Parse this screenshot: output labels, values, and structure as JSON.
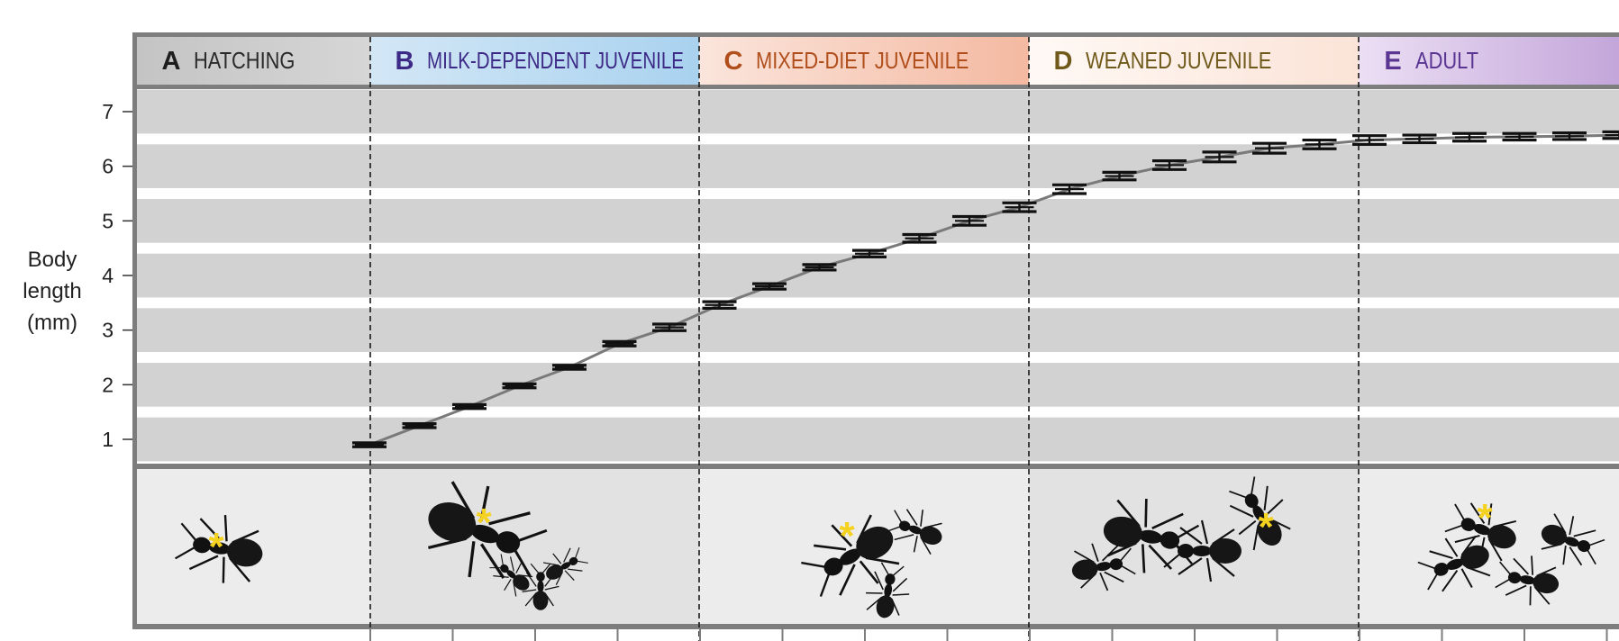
{
  "chart_data": {
    "type": "line",
    "title": "",
    "xlabel": "",
    "ylabel": "Body length (mm)",
    "ylabel_lines": [
      "Body",
      "length",
      "(mm)"
    ],
    "ylim": [
      0.4,
      7.45
    ],
    "yticks": [
      1,
      2,
      3,
      4,
      5,
      6,
      7
    ],
    "ytick_labels": [
      "1",
      "2",
      "3",
      "4",
      "5",
      "6",
      "7"
    ],
    "grid": "horizontal white bands on grey background",
    "legend": "none",
    "line_color": "#7a7a7a",
    "stages": [
      {
        "letter": "A",
        "name": "HATCHING",
        "letter_color": "#1e1e1e",
        "name_color": "#2a2a2a",
        "bg_from": "#c4c4c4",
        "bg_to": "#d6d6d6"
      },
      {
        "letter": "B",
        "name": "MILK-DEPENDENT JUVENILE",
        "letter_color": "#3d2a86",
        "name_color": "#3d2a86",
        "bg_from": "#d3e7f6",
        "bg_to": "#a9d2ef"
      },
      {
        "letter": "C",
        "name": "MIXED-DIET JUVENILE",
        "letter_color": "#b04e1c",
        "name_color": "#b04e1c",
        "bg_from": "#fbe5dc",
        "bg_to": "#f4b9a1"
      },
      {
        "letter": "D",
        "name": "WEANED JUVENILE",
        "letter_color": "#6f5a1b",
        "name_color": "#6f5a1b",
        "bg_from": "#fff9f5",
        "bg_to": "#fbe3d7"
      },
      {
        "letter": "E",
        "name": "ADULT",
        "letter_color": "#5a3592",
        "name_color": "#5a3592",
        "bg_from": "#ecdff4",
        "bg_to": "#c3a6da"
      }
    ],
    "series": [
      {
        "points": [
          {
            "x": 1,
            "y": 0.9,
            "err": 0.02
          },
          {
            "x": 2,
            "y": 1.25,
            "err": 0.03
          },
          {
            "x": 3,
            "y": 1.6,
            "err": 0.03
          },
          {
            "x": 4,
            "y": 1.98,
            "err": 0.03
          },
          {
            "x": 5,
            "y": 2.32,
            "err": 0.03
          },
          {
            "x": 6,
            "y": 2.75,
            "err": 0.04
          },
          {
            "x": 7,
            "y": 3.05,
            "err": 0.06
          },
          {
            "x": 8,
            "y": 3.46,
            "err": 0.06
          },
          {
            "x": 9,
            "y": 3.8,
            "err": 0.05
          },
          {
            "x": 10,
            "y": 4.15,
            "err": 0.05
          },
          {
            "x": 11,
            "y": 4.4,
            "err": 0.06
          },
          {
            "x": 12,
            "y": 4.68,
            "err": 0.07
          },
          {
            "x": 13,
            "y": 5.0,
            "err": 0.08
          },
          {
            "x": 14,
            "y": 5.25,
            "err": 0.08
          },
          {
            "x": 15,
            "y": 5.58,
            "err": 0.08
          },
          {
            "x": 16,
            "y": 5.82,
            "err": 0.07
          },
          {
            "x": 17,
            "y": 6.02,
            "err": 0.08
          },
          {
            "x": 18,
            "y": 6.17,
            "err": 0.09
          },
          {
            "x": 19,
            "y": 6.33,
            "err": 0.09
          },
          {
            "x": 20,
            "y": 6.4,
            "err": 0.08
          },
          {
            "x": 21,
            "y": 6.48,
            "err": 0.08
          },
          {
            "x": 22,
            "y": 6.5,
            "err": 0.07
          },
          {
            "x": 23,
            "y": 6.53,
            "err": 0.07
          },
          {
            "x": 24,
            "y": 6.54,
            "err": 0.06
          },
          {
            "x": 25,
            "y": 6.55,
            "err": 0.06
          },
          {
            "x": 26,
            "y": 6.57,
            "err": 0.06
          }
        ]
      }
    ],
    "photo_panels": [
      {
        "stage": "A",
        "marker": "*",
        "marker_color": "#f5d21f"
      },
      {
        "stage": "B",
        "marker": "*",
        "marker_color": "#f5d21f"
      },
      {
        "stage": "C",
        "marker": "*",
        "marker_color": "#f5d21f"
      },
      {
        "stage": "D",
        "marker": "*",
        "marker_color": "#f5d21f"
      },
      {
        "stage": "E",
        "marker": "*",
        "marker_color": "#f5d21f"
      }
    ]
  }
}
